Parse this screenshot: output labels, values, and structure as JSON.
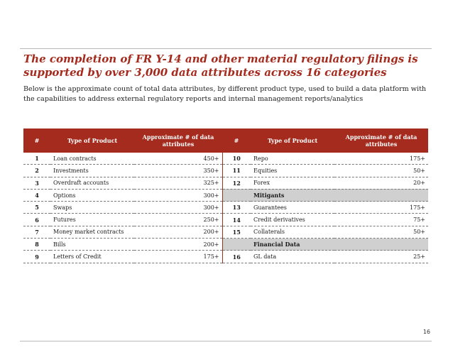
{
  "slide": {
    "title": "The completion of FR Y-14 and other material regulatory filings is supported by over 3,000 data attributes across 16 categories",
    "subtitle": "Below is the approximate count of total data attributes, by different product type, used to build a data platform with the capabilities to address external regulatory reports and internal management reports/analytics",
    "page_number": "16",
    "accent_color": "#a42b1e"
  },
  "table": {
    "headers": {
      "left_num": "#",
      "left_type": "Type of Product",
      "left_count": "Approximate # of data attributes",
      "right_num": "#",
      "right_type": "Type of Product",
      "right_count": "Approximate # of data attributes"
    },
    "rows": [
      {
        "left": {
          "num": "1",
          "type": "Loan contracts",
          "count": "450+"
        },
        "right": {
          "num": "10",
          "type": "Repo",
          "count": "175+"
        }
      },
      {
        "left": {
          "num": "2",
          "type": "Investments",
          "count": "350+"
        },
        "right": {
          "num": "11",
          "type": "Equities",
          "count": "50+"
        }
      },
      {
        "left": {
          "num": "3",
          "type": "Overdraft accounts",
          "count": "325+"
        },
        "right": {
          "num": "12",
          "type": "Forex",
          "count": "20+"
        }
      },
      {
        "left": {
          "num": "4",
          "type": "Options",
          "count": "300+"
        },
        "right": {
          "num": "",
          "type": "Mitigants",
          "count": ""
        }
      },
      {
        "left": {
          "num": "5",
          "type": "Swaps",
          "count": "300+"
        },
        "right": {
          "num": "13",
          "type": "Guarantees",
          "count": "175+"
        }
      },
      {
        "left": {
          "num": "6",
          "type": "Futures",
          "count": "250+"
        },
        "right": {
          "num": "14",
          "type": "Credit derivatives",
          "count": "75+"
        }
      },
      {
        "left": {
          "num": "7",
          "type": "Money market contracts",
          "count": "200+"
        },
        "right": {
          "num": "15",
          "type": "Collaterals",
          "count": "50+"
        }
      },
      {
        "left": {
          "num": "8",
          "type": "Bills",
          "count": "200+"
        },
        "right": {
          "num": "",
          "type": "Financial Data",
          "count": ""
        }
      },
      {
        "left": {
          "num": "9",
          "type": "Letters of Credit",
          "count": "175+"
        },
        "right": {
          "num": "16",
          "type": "GL data",
          "count": "25+"
        }
      }
    ]
  }
}
